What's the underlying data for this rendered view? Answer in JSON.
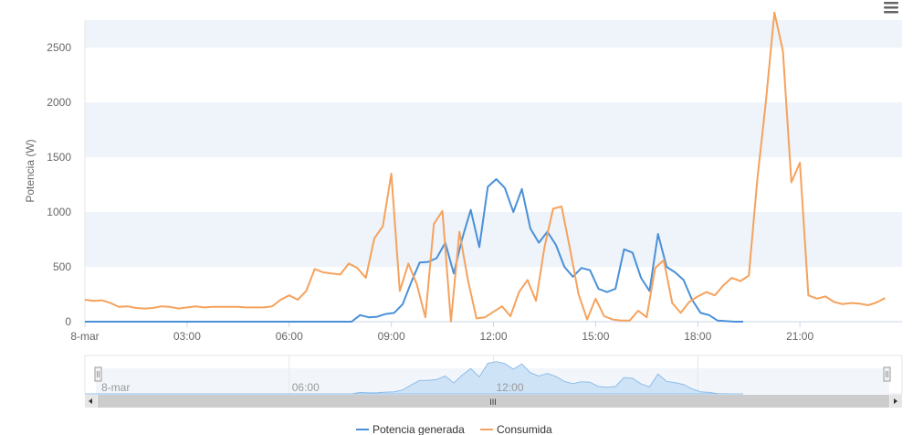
{
  "menu": {
    "icon": "hamburger-menu-icon"
  },
  "chart_data": {
    "type": "line",
    "title": "",
    "xlabel": "",
    "ylabel": "Potencia (W)",
    "x_range": [
      "00:00",
      "24:00"
    ],
    "ylim": [
      0,
      2750
    ],
    "y_ticks": [
      0,
      500,
      1000,
      1500,
      2000,
      2500
    ],
    "y_tick_labels": [
      "0",
      "500",
      "1000",
      "1500",
      "2000",
      "2500"
    ],
    "x_ticks": [
      "00:00",
      "03:00",
      "06:00",
      "09:00",
      "12:00",
      "15:00",
      "18:00",
      "21:00"
    ],
    "x_tick_labels": [
      "8-mar",
      "03:00",
      "06:00",
      "09:00",
      "12:00",
      "15:00",
      "18:00",
      "21:00"
    ],
    "grid": "alternating horizontal bands",
    "legend": "bottom-center",
    "series": [
      {
        "name": "Potencia generada",
        "color": "#4a90d9",
        "points": [
          [
            "00:00",
            0
          ],
          [
            "01:00",
            0
          ],
          [
            "02:00",
            0
          ],
          [
            "03:00",
            0
          ],
          [
            "04:00",
            0
          ],
          [
            "05:00",
            0
          ],
          [
            "06:00",
            0
          ],
          [
            "07:00",
            0
          ],
          [
            "07:50",
            0
          ],
          [
            "08:05",
            60
          ],
          [
            "08:20",
            40
          ],
          [
            "08:35",
            45
          ],
          [
            "08:50",
            70
          ],
          [
            "09:05",
            80
          ],
          [
            "09:20",
            160
          ],
          [
            "09:35",
            360
          ],
          [
            "09:50",
            540
          ],
          [
            "10:05",
            545
          ],
          [
            "10:20",
            580
          ],
          [
            "10:35",
            720
          ],
          [
            "10:50",
            440
          ],
          [
            "11:05",
            760
          ],
          [
            "11:20",
            1020
          ],
          [
            "11:35",
            680
          ],
          [
            "11:50",
            1230
          ],
          [
            "12:05",
            1300
          ],
          [
            "12:20",
            1220
          ],
          [
            "12:35",
            1000
          ],
          [
            "12:50",
            1210
          ],
          [
            "13:05",
            850
          ],
          [
            "13:20",
            720
          ],
          [
            "13:35",
            820
          ],
          [
            "13:50",
            700
          ],
          [
            "14:05",
            500
          ],
          [
            "14:20",
            410
          ],
          [
            "14:35",
            490
          ],
          [
            "14:50",
            470
          ],
          [
            "15:05",
            300
          ],
          [
            "15:20",
            270
          ],
          [
            "15:35",
            300
          ],
          [
            "15:50",
            660
          ],
          [
            "16:05",
            630
          ],
          [
            "16:20",
            400
          ],
          [
            "16:35",
            280
          ],
          [
            "16:50",
            800
          ],
          [
            "17:05",
            500
          ],
          [
            "17:20",
            450
          ],
          [
            "17:35",
            380
          ],
          [
            "17:50",
            200
          ],
          [
            "18:05",
            80
          ],
          [
            "18:20",
            60
          ],
          [
            "18:35",
            10
          ],
          [
            "18:50",
            5
          ],
          [
            "19:05",
            0
          ],
          [
            "19:20",
            0
          ]
        ]
      },
      {
        "name": "Consumida",
        "color": "#f5a25d",
        "points": [
          [
            "00:00",
            200
          ],
          [
            "00:15",
            190
          ],
          [
            "00:30",
            195
          ],
          [
            "00:45",
            170
          ],
          [
            "01:00",
            135
          ],
          [
            "01:15",
            140
          ],
          [
            "01:30",
            125
          ],
          [
            "01:45",
            120
          ],
          [
            "02:00",
            125
          ],
          [
            "02:15",
            140
          ],
          [
            "02:30",
            135
          ],
          [
            "02:45",
            120
          ],
          [
            "03:00",
            130
          ],
          [
            "03:15",
            140
          ],
          [
            "03:30",
            130
          ],
          [
            "03:45",
            135
          ],
          [
            "04:00",
            135
          ],
          [
            "04:15",
            135
          ],
          [
            "04:30",
            135
          ],
          [
            "04:45",
            130
          ],
          [
            "05:00",
            130
          ],
          [
            "05:15",
            130
          ],
          [
            "05:30",
            140
          ],
          [
            "05:45",
            200
          ],
          [
            "06:00",
            240
          ],
          [
            "06:15",
            200
          ],
          [
            "06:30",
            280
          ],
          [
            "06:45",
            480
          ],
          [
            "07:00",
            450
          ],
          [
            "07:15",
            440
          ],
          [
            "07:30",
            430
          ],
          [
            "07:45",
            530
          ],
          [
            "08:00",
            490
          ],
          [
            "08:15",
            400
          ],
          [
            "08:30",
            760
          ],
          [
            "08:45",
            870
          ],
          [
            "09:00",
            1350
          ],
          [
            "09:15",
            280
          ],
          [
            "09:30",
            530
          ],
          [
            "09:45",
            340
          ],
          [
            "10:00",
            40
          ],
          [
            "10:15",
            890
          ],
          [
            "10:30",
            1010
          ],
          [
            "10:45",
            0
          ],
          [
            "11:00",
            820
          ],
          [
            "11:15",
            380
          ],
          [
            "11:30",
            30
          ],
          [
            "11:45",
            40
          ],
          [
            "12:00",
            90
          ],
          [
            "12:15",
            140
          ],
          [
            "12:30",
            50
          ],
          [
            "12:45",
            270
          ],
          [
            "13:00",
            380
          ],
          [
            "13:15",
            190
          ],
          [
            "13:30",
            680
          ],
          [
            "13:45",
            1030
          ],
          [
            "14:00",
            1050
          ],
          [
            "14:15",
            660
          ],
          [
            "14:30",
            250
          ],
          [
            "14:45",
            20
          ],
          [
            "15:00",
            210
          ],
          [
            "15:15",
            50
          ],
          [
            "15:30",
            20
          ],
          [
            "15:45",
            10
          ],
          [
            "16:00",
            10
          ],
          [
            "16:15",
            100
          ],
          [
            "16:30",
            40
          ],
          [
            "16:45",
            490
          ],
          [
            "17:00",
            560
          ],
          [
            "17:15",
            170
          ],
          [
            "17:30",
            80
          ],
          [
            "17:45",
            180
          ],
          [
            "18:00",
            230
          ],
          [
            "18:15",
            270
          ],
          [
            "18:30",
            240
          ],
          [
            "18:45",
            330
          ],
          [
            "19:00",
            400
          ],
          [
            "19:15",
            370
          ],
          [
            "19:30",
            420
          ],
          [
            "19:45",
            1300
          ],
          [
            "20:00",
            2000
          ],
          [
            "20:15",
            2820
          ],
          [
            "20:30",
            2470
          ],
          [
            "20:45",
            1270
          ],
          [
            "21:00",
            1450
          ],
          [
            "21:15",
            240
          ],
          [
            "21:30",
            210
          ],
          [
            "21:45",
            230
          ],
          [
            "22:00",
            180
          ],
          [
            "22:15",
            160
          ],
          [
            "22:30",
            170
          ],
          [
            "22:45",
            165
          ],
          [
            "23:00",
            150
          ],
          [
            "23:15",
            175
          ],
          [
            "23:30",
            215
          ]
        ]
      }
    ],
    "navigator": {
      "labels": [
        "8-mar",
        "06:00",
        "12:00"
      ],
      "label_times": [
        "00:00",
        "06:00",
        "12:00"
      ],
      "scrollbar_grip": "III"
    }
  }
}
